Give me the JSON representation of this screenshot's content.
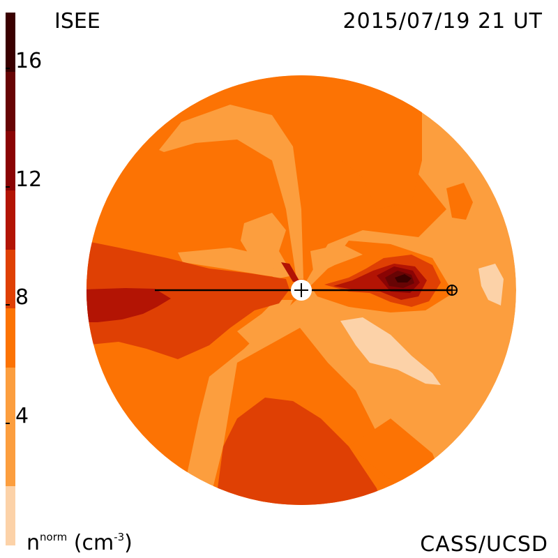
{
  "header": {
    "source": "ISEE",
    "timestamp": "2015/07/19 21 UT"
  },
  "footer": {
    "credit": "CASS/UCSD"
  },
  "colorbar": {
    "quantity": "n",
    "superscript": "norm",
    "unit_prefix": "(cm",
    "unit_exp": "-3",
    "unit_suffix": ")",
    "min": 0,
    "max": 18,
    "ticks": [
      "4",
      "8",
      "12",
      "16"
    ],
    "tick_values": [
      4,
      8,
      12,
      16
    ],
    "bands": [
      {
        "from": 0,
        "to": 2,
        "color": "#fcd2a8"
      },
      {
        "from": 2,
        "to": 6,
        "color": "#fc9e3e"
      },
      {
        "from": 6,
        "to": 8,
        "color": "#fc7304"
      },
      {
        "from": 8,
        "to": 10,
        "color": "#df4004"
      },
      {
        "from": 10,
        "to": 12,
        "color": "#b31404"
      },
      {
        "from": 12,
        "to": 14,
        "color": "#8a0404"
      },
      {
        "from": 14,
        "to": 16,
        "color": "#670404"
      },
      {
        "from": 16,
        "to": 18,
        "color": "#3a0000"
      }
    ]
  },
  "map": {
    "markers": [
      "sun",
      "earth"
    ]
  }
}
